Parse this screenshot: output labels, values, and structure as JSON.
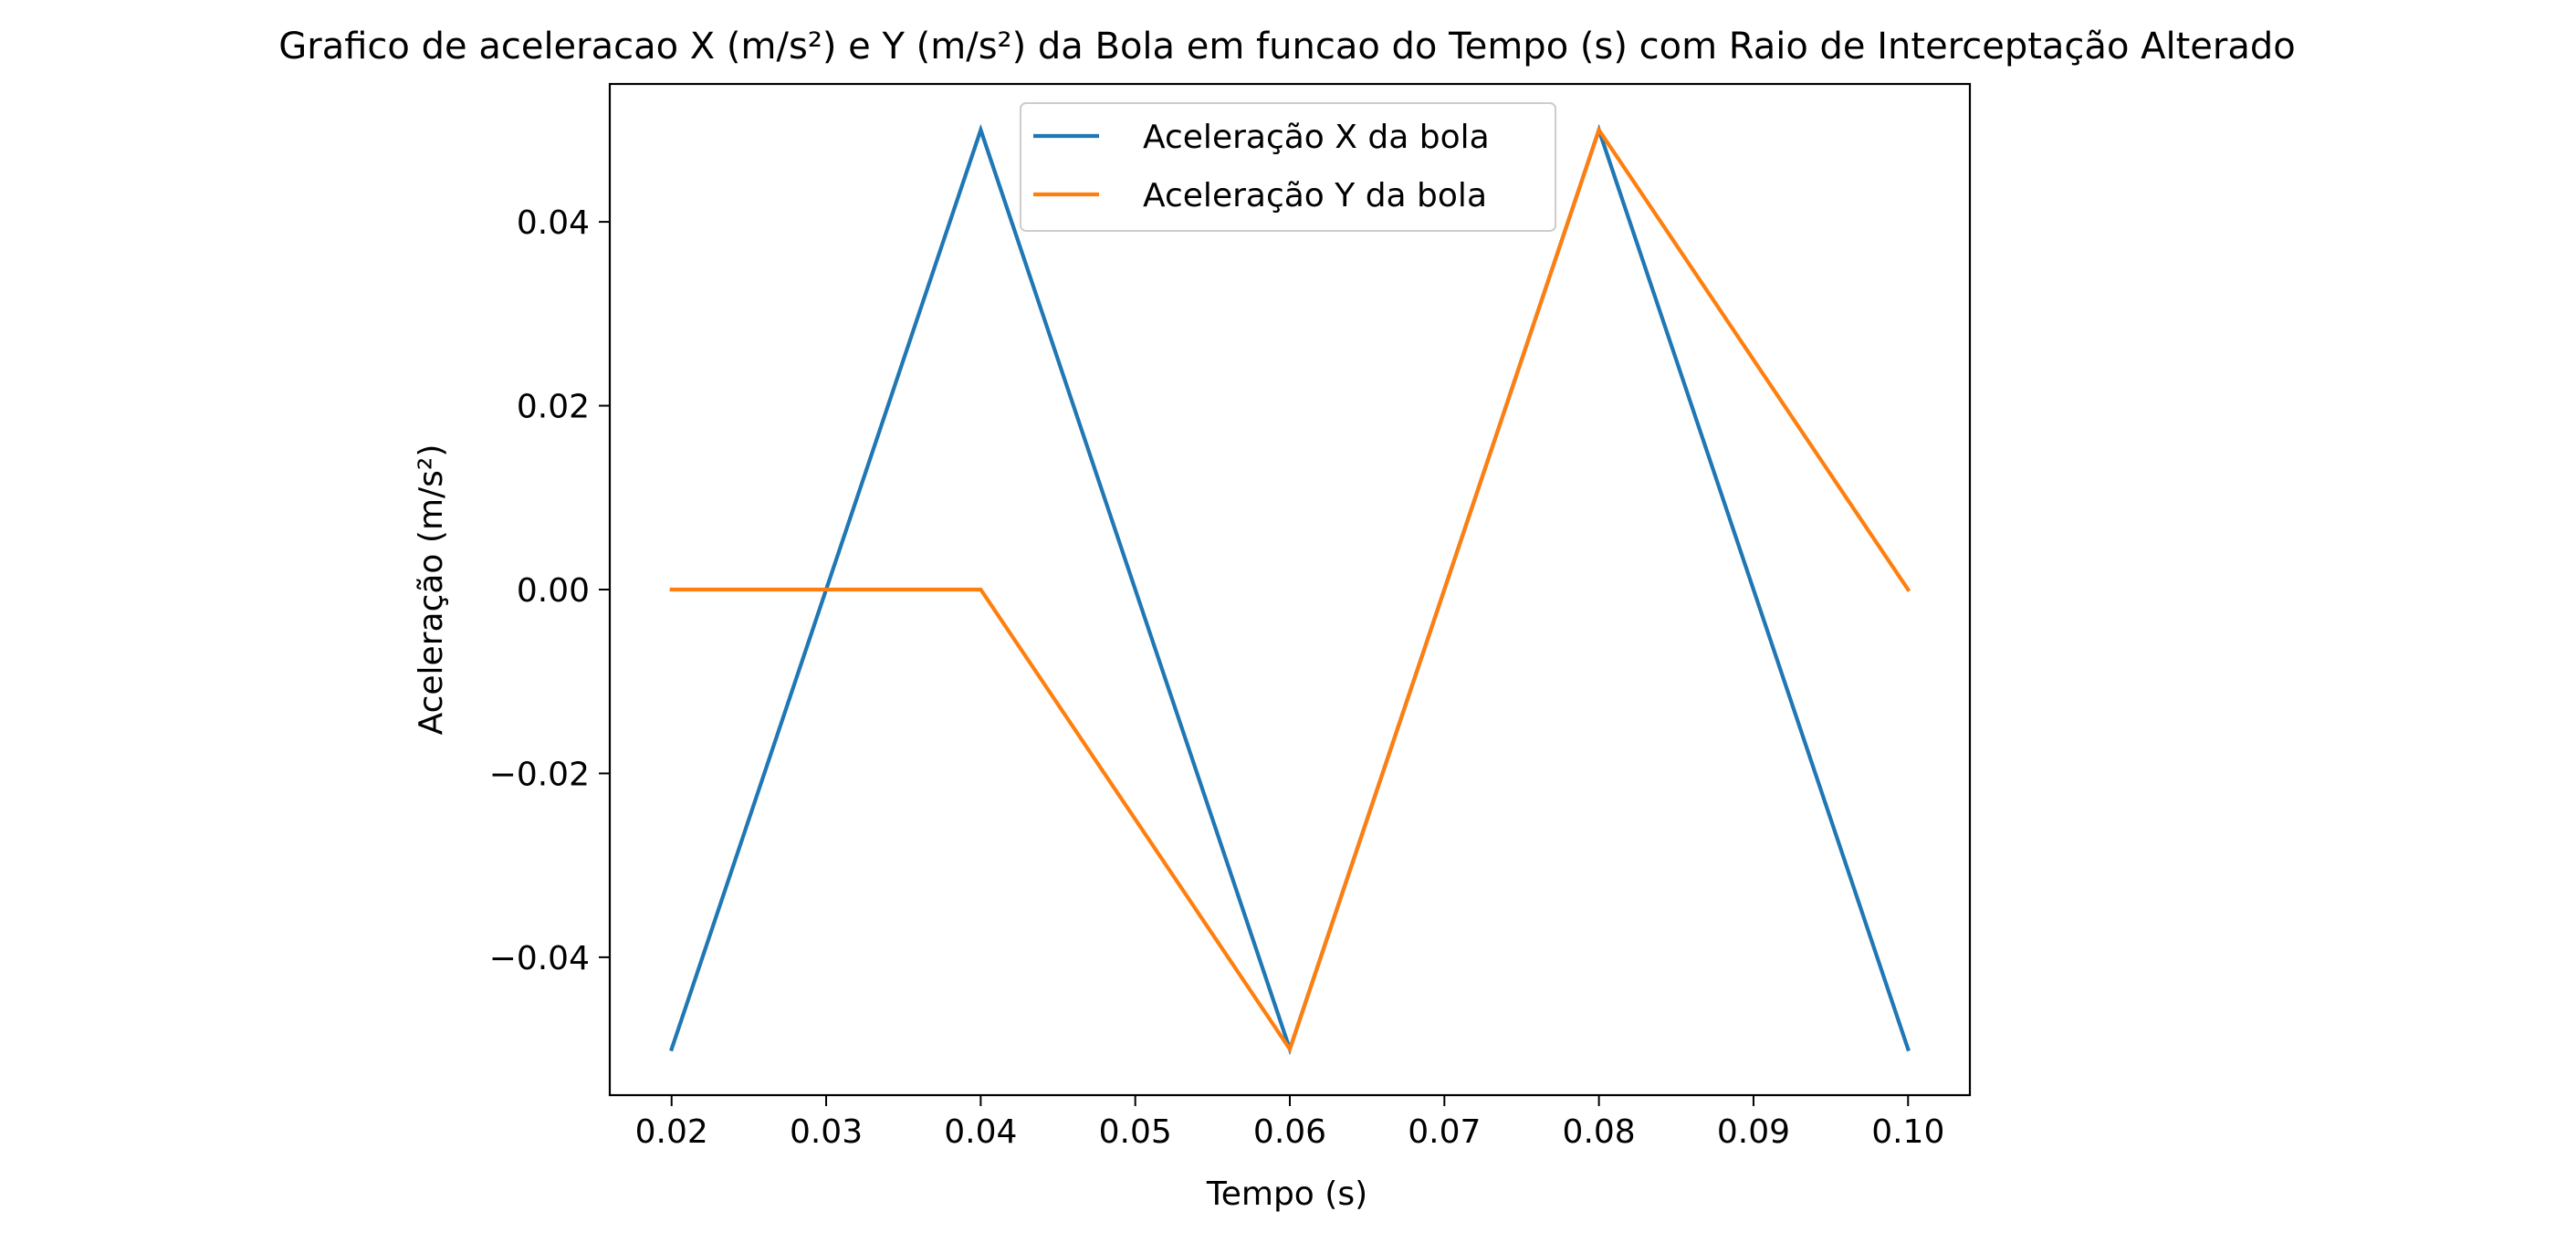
{
  "chart_data": {
    "type": "line",
    "title": "Grafico de aceleracao X (m/s²) e Y (m/s²) da Bola em funcao do Tempo (s) com Raio de Interceptação Alterado",
    "xlabel": "Tempo (s)",
    "ylabel": "Aceleração (m/s²)",
    "xlim": [
      0.016,
      0.104
    ],
    "ylim": [
      -0.055,
      0.055
    ],
    "x_ticks": [
      0.02,
      0.03,
      0.04,
      0.05,
      0.06,
      0.07,
      0.08,
      0.09,
      0.1
    ],
    "x_tick_labels": [
      "0.02",
      "0.03",
      "0.04",
      "0.05",
      "0.06",
      "0.07",
      "0.08",
      "0.09",
      "0.10"
    ],
    "y_ticks": [
      -0.04,
      -0.02,
      0.0,
      0.02,
      0.04
    ],
    "y_tick_labels": [
      "−0.04",
      "−0.02",
      "0.00",
      "0.02",
      "0.04"
    ],
    "grid": false,
    "legend_position": "top-center",
    "x": [
      0.02,
      0.04,
      0.06,
      0.08,
      0.1
    ],
    "series": [
      {
        "name": "Aceleração X da bola",
        "color": "#1f77b4",
        "values": [
          -0.05,
          0.05,
          -0.05,
          0.05,
          -0.05
        ]
      },
      {
        "name": "Aceleração Y da bola",
        "color": "#ff7f0e",
        "values": [
          0.0,
          0.0,
          -0.05,
          0.05,
          0.0
        ]
      }
    ]
  }
}
